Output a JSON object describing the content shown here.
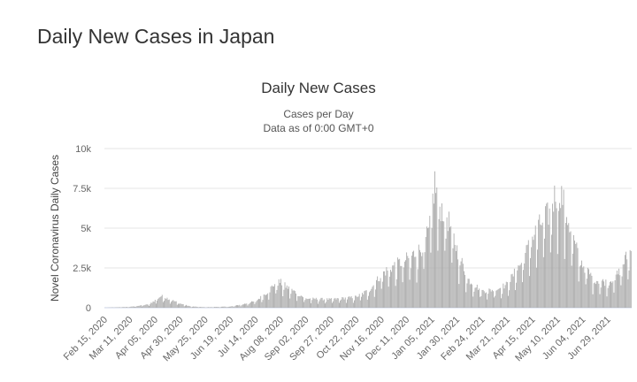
{
  "page": {
    "heading": "Daily New Cases in Japan"
  },
  "chart_data": {
    "type": "bar",
    "title": "Daily New Cases",
    "subtitle_lines": [
      "Cases per Day",
      "Data as of 0:00 GMT+0"
    ],
    "ylabel": "Novel Coronavirus Daily Cases",
    "xlabel": "",
    "ylim": [
      0,
      10000
    ],
    "y_ticks": [
      {
        "value": 0,
        "label": "0"
      },
      {
        "value": 2500,
        "label": "2.5k"
      },
      {
        "value": 5000,
        "label": "5k"
      },
      {
        "value": 7500,
        "label": "7.5k"
      },
      {
        "value": 10000,
        "label": "10k"
      }
    ],
    "x_start": "2020-02-15",
    "x_end": "2021-07-22",
    "x_ticks": [
      "Feb 15, 2020",
      "Mar 11, 2020",
      "Apr 05, 2020",
      "Apr 30, 2020",
      "May 25, 2020",
      "Jun 19, 2020",
      "Jul 14, 2020",
      "Aug 08, 2020",
      "Sep 02, 2020",
      "Sep 27, 2020",
      "Oct 22, 2020",
      "Nov 16, 2020",
      "Dec 11, 2020",
      "Jan 05, 2021",
      "Jan 30, 2021",
      "Feb 24, 2021",
      "Mar 21, 2021",
      "Apr 15, 2021",
      "May 10, 2021",
      "Jun 04, 2021",
      "Jun 29, 2021"
    ],
    "grid": true,
    "bar_color": "#a8a8a8",
    "grid_color": "#e6e6e6",
    "series_anchors": [
      {
        "date": "2020-02-15",
        "value": 5
      },
      {
        "date": "2020-03-11",
        "value": 50
      },
      {
        "date": "2020-03-30",
        "value": 200
      },
      {
        "date": "2020-04-05",
        "value": 450
      },
      {
        "date": "2020-04-11",
        "value": 700
      },
      {
        "date": "2020-04-18",
        "value": 550
      },
      {
        "date": "2020-04-30",
        "value": 250
      },
      {
        "date": "2020-05-10",
        "value": 80
      },
      {
        "date": "2020-05-25",
        "value": 30
      },
      {
        "date": "2020-06-19",
        "value": 70
      },
      {
        "date": "2020-07-01",
        "value": 200
      },
      {
        "date": "2020-07-14",
        "value": 400
      },
      {
        "date": "2020-07-25",
        "value": 900
      },
      {
        "date": "2020-08-01",
        "value": 1400
      },
      {
        "date": "2020-08-07",
        "value": 1550
      },
      {
        "date": "2020-08-15",
        "value": 1200
      },
      {
        "date": "2020-09-02",
        "value": 550
      },
      {
        "date": "2020-09-27",
        "value": 500
      },
      {
        "date": "2020-10-22",
        "value": 650
      },
      {
        "date": "2020-11-05",
        "value": 1100
      },
      {
        "date": "2020-11-16",
        "value": 2000
      },
      {
        "date": "2020-11-25",
        "value": 2400
      },
      {
        "date": "2020-12-11",
        "value": 2900
      },
      {
        "date": "2020-12-25",
        "value": 3500
      },
      {
        "date": "2021-01-02",
        "value": 4500
      },
      {
        "date": "2021-01-08",
        "value": 7500
      },
      {
        "date": "2021-01-12",
        "value": 6200
      },
      {
        "date": "2021-01-20",
        "value": 5500
      },
      {
        "date": "2021-01-30",
        "value": 3500
      },
      {
        "date": "2021-02-10",
        "value": 1700
      },
      {
        "date": "2021-02-24",
        "value": 1000
      },
      {
        "date": "2021-03-10",
        "value": 1100
      },
      {
        "date": "2021-03-21",
        "value": 1400
      },
      {
        "date": "2021-04-05",
        "value": 2800
      },
      {
        "date": "2021-04-15",
        "value": 4200
      },
      {
        "date": "2021-04-25",
        "value": 5200
      },
      {
        "date": "2021-05-01",
        "value": 5600
      },
      {
        "date": "2021-05-08",
        "value": 6800
      },
      {
        "date": "2021-05-13",
        "value": 7000
      },
      {
        "date": "2021-05-20",
        "value": 5400
      },
      {
        "date": "2021-05-28",
        "value": 3600
      },
      {
        "date": "2021-06-04",
        "value": 2600
      },
      {
        "date": "2021-06-15",
        "value": 1700
      },
      {
        "date": "2021-06-29",
        "value": 1500
      },
      {
        "date": "2021-07-10",
        "value": 2100
      },
      {
        "date": "2021-07-16",
        "value": 2900
      },
      {
        "date": "2021-07-22",
        "value": 3400
      }
    ]
  }
}
